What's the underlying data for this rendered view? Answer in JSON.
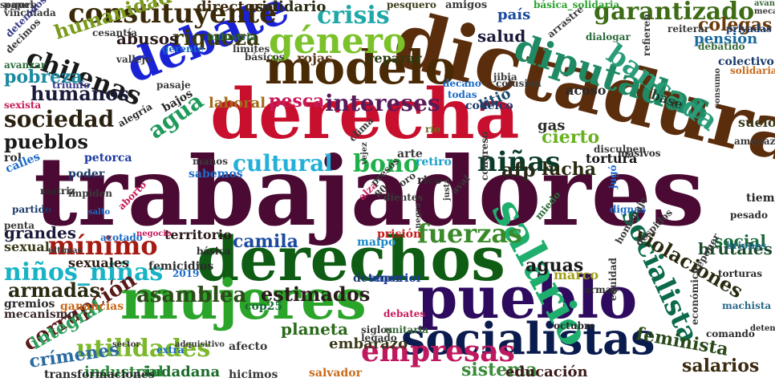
{
  "words": [
    {
      "text": "trabajadores",
      "color": "#4a0a33"
    },
    {
      "text": "dictadura",
      "color": "#5a2d0c"
    },
    {
      "text": "derecha",
      "color": "#c8102e"
    },
    {
      "text": "derechos",
      "color": "#0f5c14"
    },
    {
      "text": "pueblo",
      "color": "#2e0b5e"
    },
    {
      "text": "mujeres",
      "color": "#2aa52a"
    },
    {
      "text": "socialistas",
      "color": "#0a1b4d"
    },
    {
      "text": "modelo",
      "color": "#4a2a05"
    },
    {
      "text": "debate",
      "color": "#1a22d6"
    },
    {
      "text": "salario",
      "color": "#1fae6e"
    },
    {
      "text": "diputadas",
      "color": "#1f8a63"
    },
    {
      "text": "socialista",
      "color": "#0d6a4a"
    },
    {
      "text": "constituyente",
      "color": "#3a2a0a"
    },
    {
      "text": "género",
      "color": "#7bc22a"
    },
    {
      "text": "empresas",
      "color": "#c0185f"
    },
    {
      "text": "bancada",
      "color": "#2b9c7a"
    },
    {
      "text": "chilenas",
      "color": "#1a1a1a"
    },
    {
      "text": "crisis",
      "color": "#1fa7a7"
    },
    {
      "text": "garantizado",
      "color": "#3d6b16"
    },
    {
      "text": "fuerzas",
      "color": "#3a8a2a"
    },
    {
      "text": "niñas",
      "color": "#0b3c2a"
    },
    {
      "text": "mínimo",
      "color": "#a61a12"
    },
    {
      "text": "niños_niñas",
      "color": "#19b3c4"
    },
    {
      "text": "utilidades",
      "color": "#7cb82a"
    },
    {
      "text": "cultural",
      "color": "#23b0d8"
    },
    {
      "text": "bono",
      "color": "#20b04a"
    },
    {
      "text": "riqueza",
      "color": "#3a3a10"
    },
    {
      "text": "agua",
      "color": "#1f9a5a"
    },
    {
      "text": "sociedad",
      "color": "#2a2010"
    },
    {
      "text": "humanidad",
      "color": "#7a9a1a"
    },
    {
      "text": "asamblea",
      "color": "#2d4a1a"
    },
    {
      "text": "estimados",
      "color": "#2a1a1a"
    },
    {
      "text": "intereses",
      "color": "#5a1a5a"
    },
    {
      "text": "corrupción",
      "color": "#5a1a1a"
    },
    {
      "text": "integral",
      "color": "#2aa05a"
    },
    {
      "text": "crímenes",
      "color": "#2a6aa0"
    },
    {
      "text": "armadas",
      "color": "#2a2a10"
    },
    {
      "text": "violaciones",
      "color": "#2a2a10"
    },
    {
      "text": "colegas",
      "color": "#6a3a0a"
    },
    {
      "text": "humanos",
      "color": "#1a1a3a"
    },
    {
      "text": "pueblos",
      "color": "#1a1a1a"
    },
    {
      "text": "pobreza",
      "color": "#1a8aa0"
    },
    {
      "text": "camila",
      "color": "#1a4aa0"
    },
    {
      "text": "aguas",
      "color": "#1a1a1a"
    },
    {
      "text": "sistema",
      "color": "#3a8a3a"
    },
    {
      "text": "feminista",
      "color": "#2a4a1a"
    },
    {
      "text": "salarios",
      "color": "#3a2a10"
    },
    {
      "text": "pesca",
      "color": "#c81a5a"
    },
    {
      "text": "lucha",
      "color": "#2a2a10"
    },
    {
      "text": "afp",
      "color": "#2a2a1a"
    },
    {
      "text": "cierto",
      "color": "#6ab020"
    },
    {
      "text": "social",
      "color": "#1a6a3a"
    },
    {
      "text": "brutales",
      "color": "#1a4a2a"
    },
    {
      "text": "planeta",
      "color": "#2a6a1a"
    },
    {
      "text": "embarazo",
      "color": "#3a3a1a"
    },
    {
      "text": "grandes",
      "color": "#1a1a3a"
    },
    {
      "text": "salud",
      "color": "#1a1a3a"
    },
    {
      "text": "abusos",
      "color": "#2a1a1a"
    },
    {
      "text": "país",
      "color": "#1a4aa0"
    },
    {
      "text": "pensión",
      "color": "#1a6aa0"
    },
    {
      "text": "solidario",
      "color": "#2a2a10"
    },
    {
      "text": "directorio",
      "color": "#3a2a10"
    },
    {
      "text": "educación",
      "color": "#3a1a1a"
    },
    {
      "text": "ciudadana",
      "color": "#1a6a2a"
    },
    {
      "text": "industrial",
      "color": "#2a8a3a"
    },
    {
      "text": "detener",
      "color": "#1a3a6a"
    },
    {
      "text": "marco",
      "color": "#a0a01a"
    },
    {
      "text": "sexual",
      "color": "#3a3a1a"
    },
    {
      "text": "sexuales",
      "color": "#2a1a10"
    },
    {
      "text": "territorio",
      "color": "#2a1a1a"
    },
    {
      "text": "reparar",
      "color": "#2a3a10"
    },
    {
      "text": "rojas",
      "color": "#5a3a1a"
    },
    {
      "text": "laboral",
      "color": "#a06a1a"
    },
    {
      "text": "litio",
      "color": "#1a4a6a"
    },
    {
      "text": "gas",
      "color": "#2a2a2a"
    },
    {
      "text": "acoso",
      "color": "#2a2a2a"
    },
    {
      "text": "suelo",
      "color": "#3a3a1a"
    },
    {
      "text": "base",
      "color": "#1a3a2a"
    },
    {
      "text": "mecanismo",
      "color": "#3a2a2a"
    },
    {
      "text": "tortura",
      "color": "#1a1a1a"
    },
    {
      "text": "prisión",
      "color": "#c81a1a"
    },
    {
      "text": "maipo",
      "color": "#1a8ac8"
    },
    {
      "text": "retiro",
      "color": "#1aa0c8"
    },
    {
      "text": "rico",
      "color": "#2a2a2a"
    },
    {
      "text": "rol",
      "color": "#2a2a2a"
    },
    {
      "text": "calles",
      "color": "#1a6ac8"
    },
    {
      "text": "sabemos",
      "color": "#1a6ac8"
    },
    {
      "text": "bajos",
      "color": "#2a2a2a"
    },
    {
      "text": "poder",
      "color": "#1a3a6a"
    },
    {
      "text": "petorca",
      "color": "#1a3aa0"
    },
    {
      "text": "alegría",
      "color": "#2a2a2a"
    },
    {
      "text": "papel",
      "color": "#3a3a3a"
    },
    {
      "text": "vinculada",
      "color": "#3a3a3a"
    },
    {
      "text": "pesquero",
      "color": "#3a3a1a"
    },
    {
      "text": "amigos",
      "color": "#3a3a3a"
    },
    {
      "text": "básica_solidaria",
      "color": "#2aa02a"
    },
    {
      "text": "avances",
      "color": "#3a6a3a"
    },
    {
      "text": "mecanismos",
      "color": "#3a3a3a"
    },
    {
      "text": "reiterar",
      "color": "#3a3a3a"
    },
    {
      "text": "privadas",
      "color": "#1a3a6a"
    },
    {
      "text": "colectivo",
      "color": "#1a3a6a"
    },
    {
      "text": "solidaria",
      "color": "#c86a1a"
    },
    {
      "text": "amenaza",
      "color": "#3a3a3a"
    },
    {
      "text": "masivos",
      "color": "#2a2a2a"
    },
    {
      "text": "tiempo",
      "color": "#2a2a2a"
    },
    {
      "text": "pesado",
      "color": "#2a2a2a"
    },
    {
      "text": "briones",
      "color": "#1a6a8a"
    },
    {
      "text": "torturas",
      "color": "#2a2a2a"
    },
    {
      "text": "machista",
      "color": "#2a6a8a"
    },
    {
      "text": "detenido",
      "color": "#2a2a2a"
    },
    {
      "text": "comando",
      "color": "#2a2a2a"
    },
    {
      "text": "octubre",
      "color": "#2a2a2a"
    },
    {
      "text": "armas",
      "color": "#2a2a2a"
    },
    {
      "text": "debates",
      "color": "#c81a5a"
    },
    {
      "text": "siglos",
      "color": "#3a3a3a"
    },
    {
      "text": "unitaria",
      "color": "#3a6a3a"
    },
    {
      "text": "legado",
      "color": "#3a3a3a"
    },
    {
      "text": "afecto",
      "color": "#3a3a3a"
    },
    {
      "text": "extra",
      "color": "#1a6ac8"
    },
    {
      "text": "sector",
      "color": "#3a3a3a"
    },
    {
      "text": "hicimos",
      "color": "#3a3a3a"
    },
    {
      "text": "salvador",
      "color": "#c86a1a"
    },
    {
      "text": "transformaciones",
      "color": "#2a2a2a"
    },
    {
      "text": "gremios",
      "color": "#2a2a2a"
    },
    {
      "text": "ganancias",
      "color": "#c86a1a"
    },
    {
      "text": "femicidios",
      "color": "#2a2a2a"
    },
    {
      "text": "superior",
      "color": "#1a3aa0"
    },
    {
      "text": "cop25",
      "color": "#1a6a3a"
    },
    {
      "text": "básica",
      "color": "#2a2a2a"
    },
    {
      "text": "penta",
      "color": "#3a3a3a"
    },
    {
      "text": "partido",
      "color": "#1a3a6a"
    },
    {
      "text": "matriz",
      "color": "#2a2a2a"
    },
    {
      "text": "dientes",
      "color": "#3a3a3a"
    },
    {
      "text": "oro",
      "color": "#3a3a3a"
    },
    {
      "text": "alza",
      "color": "#c81a5a"
    },
    {
      "text": "arte",
      "color": "#3a3a3a"
    },
    {
      "text": "río",
      "color": "#6a6a1a"
    },
    {
      "text": "jibia",
      "color": "#3a3a3a"
    },
    {
      "text": "codelco",
      "color": "#1a3a6a"
    },
    {
      "text": "decano",
      "color": "#1a6ac8"
    },
    {
      "text": "todas",
      "color": "#1a6ac8"
    },
    {
      "text": "pasaje",
      "color": "#3a3a3a"
    },
    {
      "text": "básicos",
      "color": "#3a3a3a"
    },
    {
      "text": "límites",
      "color": "#3a3a3a"
    },
    {
      "text": "gerente",
      "color": "#1a6ac8"
    },
    {
      "text": "industria",
      "color": "#2a6a3a"
    },
    {
      "text": "cesantía",
      "color": "#3a3a3a"
    },
    {
      "text": "decimos",
      "color": "#3a3a3a"
    },
    {
      "text": "detenidos",
      "color": "#3a3a8a"
    },
    {
      "text": "avanzar",
      "color": "#2a6a3a"
    },
    {
      "text": "triunfo",
      "color": "#3a3a8a"
    },
    {
      "text": "sexista",
      "color": "#c81a5a"
    },
    {
      "text": "vallejo",
      "color": "#3a3a3a"
    },
    {
      "text": "arrastre",
      "color": "#3a3a3a"
    },
    {
      "text": "dialogar",
      "color": "#2a6a3a"
    },
    {
      "text": "debatido",
      "color": "#3a6a3a"
    },
    {
      "text": "refieren",
      "color": "#3a3a3a"
    },
    {
      "text": "disculpen",
      "color": "#3a3a3a"
    },
    {
      "text": "miedo",
      "color": "#2a6a3a"
    },
    {
      "text": "congreso",
      "color": "#3a3a3a"
    },
    {
      "text": "jugó",
      "color": "#1a6ac8"
    },
    {
      "text": "dignas",
      "color": "#1a6ac8"
    },
    {
      "text": "2019",
      "color": "#1a6ac8"
    },
    {
      "text": "vejez",
      "color": "#3a3a3a"
    },
    {
      "text": "80",
      "color": "#3a3a3a"
    },
    {
      "text": "aborto",
      "color": "#c81a5a"
    },
    {
      "text": "impiden",
      "color": "#3a3a3a"
    },
    {
      "text": "acotado",
      "color": "#1a6ac8"
    },
    {
      "text": "negocio",
      "color": "#c81a5a"
    },
    {
      "text": "últimas",
      "color": "#3a3a3a"
    },
    {
      "text": "adquisitivo",
      "color": "#3a3a3a"
    },
    {
      "text": "equidad",
      "color": "#3a3a3a"
    },
    {
      "text": "despidos",
      "color": "#3a3a3a"
    },
    {
      "text": "reponer",
      "color": "#3a3a3a"
    },
    {
      "text": "homenaje",
      "color": "#3a3a3a"
    },
    {
      "text": "económico",
      "color": "#3a3a3a"
    },
    {
      "text": "consumo",
      "color": "#3a3a3a"
    },
    {
      "text": "colusión",
      "color": "#3a3a3a"
    },
    {
      "text": "manos",
      "color": "#3a3a3a"
    },
    {
      "text": "clima",
      "color": "#3a3a3a"
    },
    {
      "text": "presos",
      "color": "#3a3a3a"
    },
    {
      "text": "aval",
      "color": "#3a3a3a"
    },
    {
      "text": "salto",
      "color": "#1a6ac8"
    },
    {
      "text": "negra",
      "color": "#3a3a3a"
    },
    {
      "text": "justa",
      "color": "#3a3a3a"
    },
    {
      "text": "seguro",
      "color": "#3a3a3a"
    }
  ]
}
